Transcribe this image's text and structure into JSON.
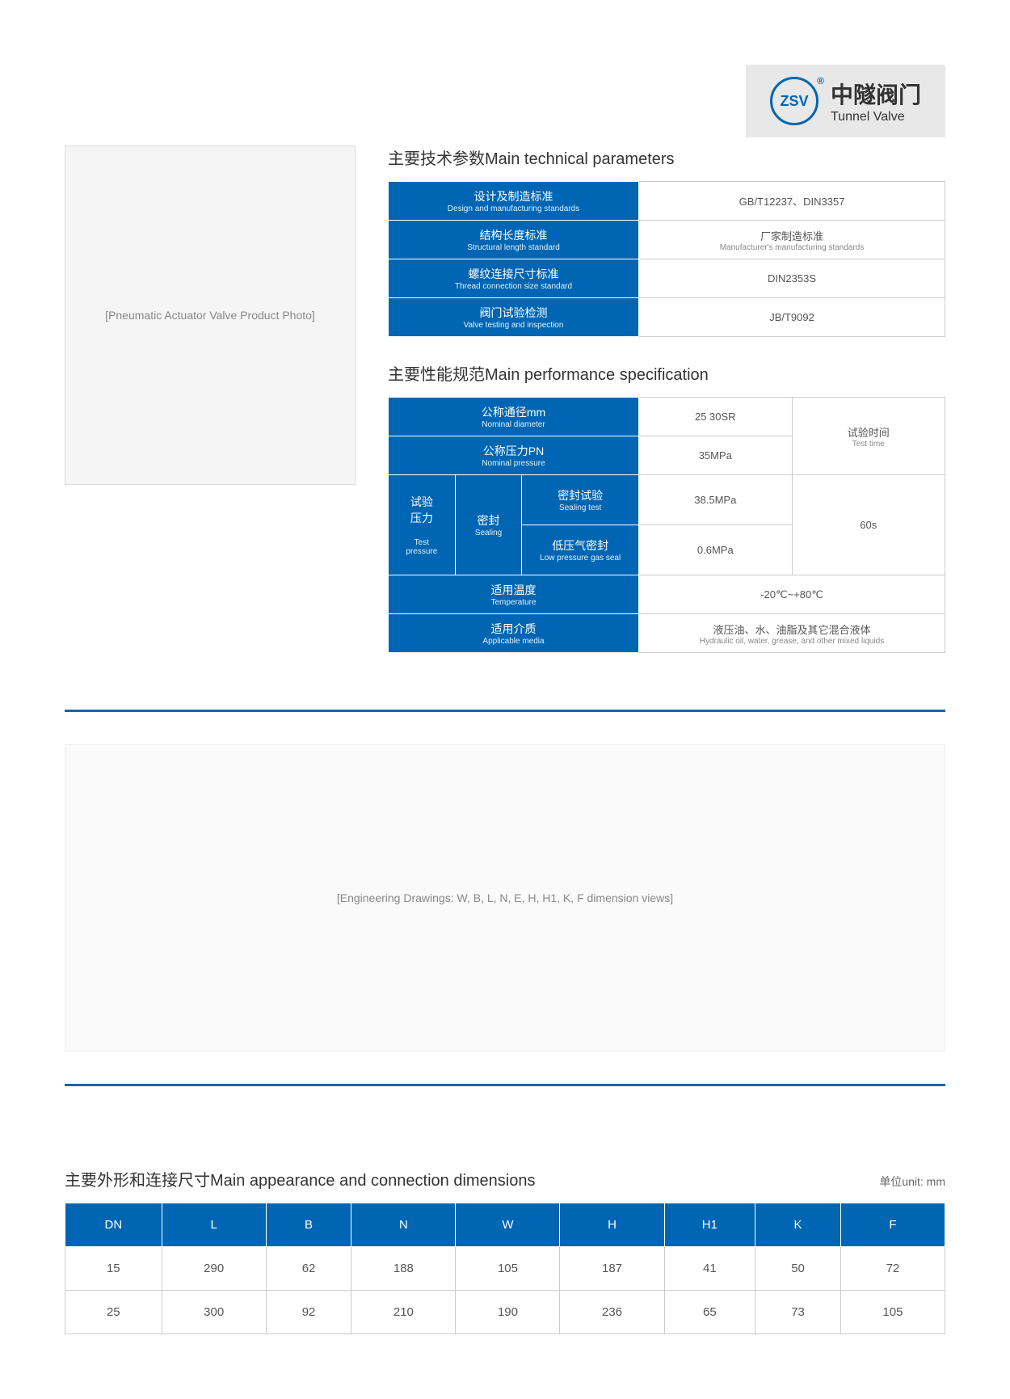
{
  "logo": {
    "abbr": "ZSV",
    "cn": "中隧阀门",
    "en": "Tunnel Valve"
  },
  "product_placeholder": "[Pneumatic Actuator Valve Product Photo]",
  "section1": {
    "title": "主要技术参数Main technical parameters",
    "rows": [
      {
        "label_cn": "设计及制造标准",
        "label_en": "Design and manufacturing standards",
        "value": "GB/T12237、DIN3357"
      },
      {
        "label_cn": "结构长度标准",
        "label_en": "Structural length standard",
        "value_cn": "厂家制造标准",
        "value_en": "Manufacturer's manufacturing standards"
      },
      {
        "label_cn": "螺纹连接尺寸标准",
        "label_en": "Thread connection size standard",
        "value": "DIN2353S"
      },
      {
        "label_cn": "阀门试验检测",
        "label_en": "Valve testing and inspection",
        "value": "JB/T9092"
      }
    ]
  },
  "section2": {
    "title": "主要性能规范Main performance specification",
    "nominal_diameter_cn": "公称通径mm",
    "nominal_diameter_en": "Nominal diameter",
    "nominal_diameter_val": "25 30SR",
    "nominal_pressure_cn": "公称压力PN",
    "nominal_pressure_en": "Nominal pressure",
    "nominal_pressure_val": "35MPa",
    "test_pressure_cn": "试验\n压力",
    "test_pressure_en": "Test\npressure",
    "sealing_cn": "密封",
    "sealing_en": "Sealing",
    "sealing_test_cn": "密封试验",
    "sealing_test_en": "Sealing test",
    "sealing_test_val": "38.5MPa",
    "low_gas_cn": "低压气密封",
    "low_gas_en": "Low pressure gas seal",
    "low_gas_val": "0.6MPa",
    "test_time_cn": "试验时间",
    "test_time_en": "Test time",
    "test_time_val": "60s",
    "temp_cn": "适用温度",
    "temp_en": "Temperature",
    "temp_val": "-20℃~+80℃",
    "media_cn": "适用介质",
    "media_en": "Applicable media",
    "media_val_cn": "液压油、水、油脂及其它混合液体",
    "media_val_en": "Hydraulic oil, water, grease, and other mixed liquids"
  },
  "diagram_placeholder": "[Engineering Drawings: W, B, L, N, E, H, H1, K, F dimension views]",
  "section3": {
    "title": "主要外形和连接尺寸Main appearance and connection dimensions",
    "unit": "单位unit: mm",
    "headers": [
      "DN",
      "L",
      "B",
      "N",
      "W",
      "H",
      "H1",
      "K",
      "F"
    ],
    "rows": [
      [
        "15",
        "290",
        "62",
        "188",
        "105",
        "187",
        "41",
        "50",
        "72"
      ],
      [
        "25",
        "300",
        "92",
        "210",
        "190",
        "236",
        "65",
        "73",
        "105"
      ]
    ]
  },
  "colors": {
    "brand_blue": "#0066b3",
    "header_bg": "#e8e8e8"
  }
}
